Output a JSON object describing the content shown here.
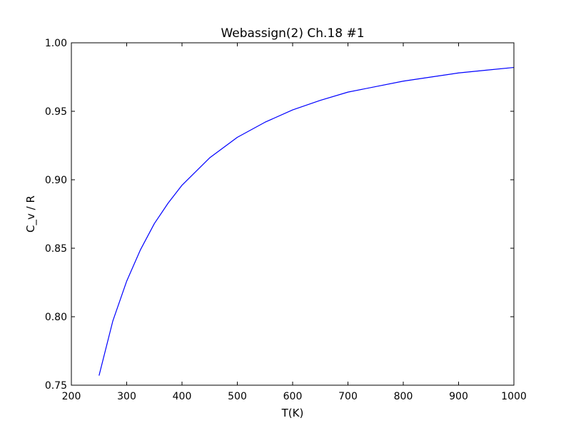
{
  "chart_data": {
    "type": "line",
    "title": "Webassign(2) Ch.18 #1",
    "xlabel": "T(K)",
    "ylabel": "C_v / R",
    "xlim": [
      200,
      1000
    ],
    "ylim": [
      0.75,
      1.0
    ],
    "xticks": [
      200,
      300,
      400,
      500,
      600,
      700,
      800,
      900,
      1000
    ],
    "xtick_labels": [
      "200",
      "300",
      "400",
      "500",
      "600",
      "700",
      "800",
      "900",
      "1000"
    ],
    "yticks": [
      0.75,
      0.8,
      0.85,
      0.9,
      0.95,
      1.0
    ],
    "ytick_labels": [
      "0.75",
      "0.80",
      "0.85",
      "0.90",
      "0.95",
      "1.00"
    ],
    "grid": false,
    "series": [
      {
        "color": "#0000ff",
        "x": [
          250,
          275,
          300,
          325,
          350,
          375,
          400,
          450,
          500,
          550,
          600,
          650,
          700,
          750,
          800,
          850,
          900,
          950,
          1000
        ],
        "y": [
          0.757,
          0.797,
          0.826,
          0.849,
          0.868,
          0.883,
          0.896,
          0.916,
          0.931,
          0.942,
          0.951,
          0.958,
          0.964,
          0.968,
          0.972,
          0.975,
          0.978,
          0.98,
          0.982
        ]
      }
    ]
  }
}
